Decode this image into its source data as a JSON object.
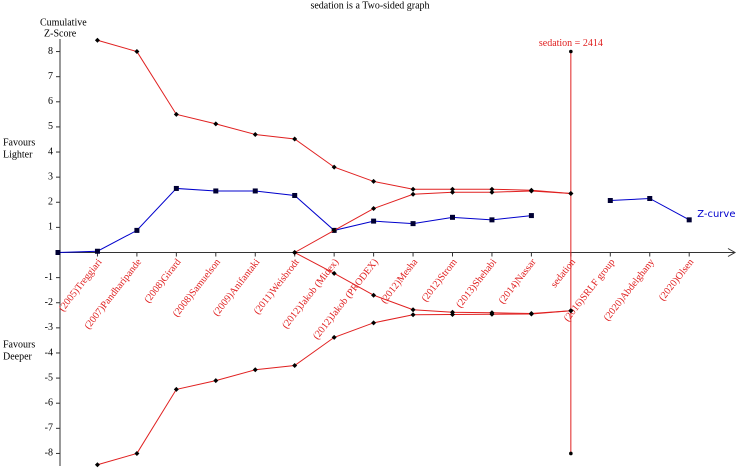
{
  "chart_data": {
    "type": "line",
    "title": "sedation is a Two-sided graph",
    "y_label": [
      "Cumulative",
      "Z-Score"
    ],
    "upper_note": [
      "Favours",
      "Lighter"
    ],
    "lower_note": [
      "Favours",
      "Deeper"
    ],
    "categories": [
      null,
      "(2005)Treggiari",
      "(2007)Pandharipande",
      "(2008)Girard",
      "(2008)Samuelson",
      "(2009)Anifantaki",
      "(2011)Weisbrodt",
      "(2012)Jakob (Midex)",
      "(2012)Jakob (PRODEX)",
      "(2012)Mesha",
      "(2012)Strom",
      "(2013)Shehabi",
      "(2014)Nassar",
      "sedation",
      "(2016)SRLF group",
      "(2020)Abdelghany",
      "(2020)Olsen"
    ],
    "ylim": [
      -8.5,
      8.5
    ],
    "yticks": [
      -8,
      -7,
      -6,
      -5,
      -4,
      -3,
      -2,
      -1,
      1,
      2,
      3,
      4,
      5,
      6,
      7,
      8
    ],
    "series": [
      {
        "name": "Z-curve",
        "color": "#0000cc",
        "marker": "square",
        "values": [
          0,
          0.05,
          0.88,
          2.55,
          2.45,
          2.45,
          2.27,
          0.88,
          1.25,
          1.15,
          1.4,
          1.3,
          1.47,
          null,
          2.07,
          2.15,
          1.3
        ]
      },
      {
        "color": "#e02020",
        "marker": "diamond",
        "values": [
          null,
          8.45,
          8.0,
          5.5,
          5.12,
          4.7,
          4.52,
          3.4,
          2.83,
          2.52,
          2.52,
          2.52,
          2.48,
          2.35,
          null,
          null,
          null
        ]
      },
      {
        "color": "#e02020",
        "marker": "diamond",
        "values": [
          null,
          -8.45,
          -8.0,
          -5.45,
          -5.1,
          -4.67,
          -4.5,
          -3.38,
          -2.8,
          -2.48,
          -2.47,
          -2.46,
          -2.45,
          -2.32,
          null,
          null,
          null
        ]
      },
      {
        "color": "#e02020",
        "marker": "diamond",
        "values": [
          null,
          null,
          null,
          null,
          null,
          null,
          0,
          0.88,
          1.75,
          2.32,
          2.4,
          2.4,
          2.45,
          2.35,
          null,
          null,
          null
        ]
      },
      {
        "color": "#e02020",
        "marker": "diamond",
        "values": [
          null,
          null,
          null,
          null,
          null,
          null,
          0,
          -0.83,
          -1.7,
          -2.28,
          -2.38,
          -2.4,
          -2.43,
          -2.32,
          null,
          null,
          null
        ]
      }
    ],
    "ris_line": {
      "label": "sedation = 2414",
      "category_index": 13,
      "values": [
        8,
        -8
      ],
      "color": "#e02020"
    }
  }
}
